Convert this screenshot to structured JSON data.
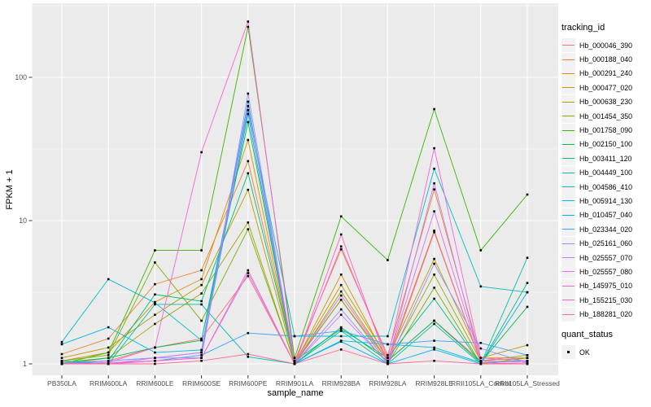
{
  "figure": {
    "background": "#FFFFFF",
    "panel_bg": "#EBEBEB",
    "grid_color": "#FFFFFF",
    "tick_text_color": "#4D4D4D",
    "tick_mark_color": "#333333",
    "axis_title_color": "#000000",
    "point_color": "#000000",
    "legend_key_bg": "#F2F2F2"
  },
  "axes": {
    "x_title": "sample_name",
    "y_title": "FPKM + 1",
    "y_tick_labels": [
      "1",
      "10",
      "100"
    ]
  },
  "legend": {
    "tracking_title": "tracking_id",
    "quant_title": "quant_status",
    "quant_items": [
      {
        "label": "OK",
        "marker": "black-square-point"
      }
    ]
  },
  "chart_data": {
    "type": "line",
    "title": "",
    "xlabel": "sample_name",
    "ylabel": "FPKM + 1",
    "yscale": "log10",
    "ylim": [
      0.83,
      324
    ],
    "y_ticks": [
      1,
      10,
      100
    ],
    "y_minor_ticks": [
      3.162,
      31.62,
      316.2
    ],
    "grid": "on",
    "legend_position": "right",
    "marker": "small-black-square",
    "categories": [
      "PB350LA",
      "RRIM600LA",
      "RRIM600LE",
      "RRIM600SE",
      "RRIM600PE",
      "RRIM901LA",
      "RRIM928BA",
      "RRIM928LA",
      "RRIM928LE",
      "RRII105LA_Control",
      "RRII105LA_Stressed"
    ],
    "series": [
      {
        "name": "Hb_000046_390",
        "color": "#F8766D",
        "values": [
          1.0,
          1.05,
          1.3,
          1.5,
          4.1,
          1.0,
          2.8,
          1.05,
          2.0,
          1.05,
          1.1
        ]
      },
      {
        "name": "Hb_000188_040",
        "color": "#EA8331",
        "values": [
          1.17,
          1.5,
          3.6,
          4.5,
          26,
          1.05,
          6.3,
          1.15,
          16.5,
          1.1,
          1.1
        ]
      },
      {
        "name": "Hb_000291_240",
        "color": "#D89000",
        "values": [
          1.05,
          1.2,
          2.7,
          3.9,
          36.5,
          1.0,
          4.2,
          1.05,
          8.5,
          1.02,
          1.05
        ]
      },
      {
        "name": "Hb_000477_020",
        "color": "#C09B00",
        "values": [
          1.1,
          1.3,
          2.2,
          3.55,
          16.4,
          1.02,
          3.55,
          1.1,
          5.4,
          1.1,
          1.35
        ]
      },
      {
        "name": "Hb_000638_230",
        "color": "#A3A500",
        "values": [
          1.0,
          1.1,
          1.9,
          3.1,
          9.7,
          1.0,
          3.2,
          1.05,
          4.2,
          1.05,
          1.15
        ]
      },
      {
        "name": "Hb_001454_350",
        "color": "#7CAE00",
        "values": [
          1.05,
          1.15,
          5.1,
          2.0,
          8.7,
          1.02,
          2.8,
          1.0,
          3.4,
          1.0,
          1.1
        ]
      },
      {
        "name": "Hb_001758_090",
        "color": "#39B600",
        "values": [
          1.0,
          1.2,
          6.2,
          6.2,
          225,
          1.1,
          10.7,
          5.3,
          60,
          6.2,
          15.2
        ]
      },
      {
        "name": "Hb_002150_100",
        "color": "#00BB4E",
        "values": [
          1.02,
          1.1,
          1.3,
          1.46,
          48.7,
          1.0,
          1.8,
          1.05,
          2.0,
          1.02,
          2.5
        ]
      },
      {
        "name": "Hb_003411_120",
        "color": "#00BF7D",
        "values": [
          1.0,
          1.05,
          3.05,
          2.74,
          21.4,
          1.05,
          1.75,
          1.1,
          2.85,
          1.0,
          3.67
        ]
      },
      {
        "name": "Hb_004449_100",
        "color": "#00C1A3",
        "values": [
          1.05,
          1.0,
          2.6,
          2.6,
          1.12,
          1.0,
          1.7,
          1.0,
          1.9,
          1.0,
          5.5
        ]
      },
      {
        "name": "Hb_004586_410",
        "color": "#00BFC4",
        "values": [
          1.42,
          3.9,
          2.67,
          1.46,
          59,
          1.56,
          1.56,
          1.56,
          23,
          3.47,
          3.16
        ]
      },
      {
        "name": "Hb_005914_130",
        "color": "#00BAE0",
        "values": [
          1.37,
          1.8,
          1.2,
          1.25,
          67.6,
          1.0,
          1.45,
          1.37,
          1.3,
          1.02,
          1.05
        ]
      },
      {
        "name": "Hb_010457_040",
        "color": "#00B0F6",
        "values": [
          1.0,
          1.05,
          1.1,
          1.2,
          55.5,
          1.0,
          1.43,
          1.0,
          1.26,
          1.0,
          3.16
        ]
      },
      {
        "name": "Hb_023344_020",
        "color": "#35A2FF",
        "values": [
          1.0,
          1.0,
          1.05,
          1.15,
          1.64,
          1.56,
          1.7,
          1.37,
          1.45,
          1.4,
          1.15
        ]
      },
      {
        "name": "Hb_025161_060",
        "color": "#9590FF",
        "values": [
          1.02,
          1.05,
          1.1,
          1.1,
          77,
          1.0,
          2.4,
          1.0,
          5.0,
          1.28,
          1.02
        ]
      },
      {
        "name": "Hb_025557_070",
        "color": "#C77CFF",
        "values": [
          1.0,
          1.02,
          1.05,
          1.1,
          4.3,
          1.0,
          2.2,
          1.02,
          18.2,
          1.02,
          1.0
        ]
      },
      {
        "name": "Hb_025557_080",
        "color": "#E76BF3",
        "values": [
          1.0,
          1.0,
          1.1,
          1.2,
          63,
          1.02,
          3.0,
          1.05,
          11.6,
          1.05,
          1.02
        ]
      },
      {
        "name": "Hb_145975_010",
        "color": "#FA62DB",
        "values": [
          1.0,
          1.02,
          1.3,
          30,
          245,
          1.0,
          6.6,
          1.1,
          32,
          1.1,
          1.05
        ]
      },
      {
        "name": "Hb_155215_030",
        "color": "#FF62BC",
        "values": [
          1.0,
          1.0,
          1.05,
          1.1,
          4.5,
          1.0,
          8.0,
          1.0,
          8.3,
          1.02,
          1.0
        ]
      },
      {
        "name": "Hb_188281_020",
        "color": "#FF6A98",
        "values": [
          1.0,
          1.0,
          1.0,
          1.05,
          1.17,
          1.0,
          1.26,
          1.0,
          1.05,
          1.0,
          1.0
        ]
      }
    ]
  }
}
